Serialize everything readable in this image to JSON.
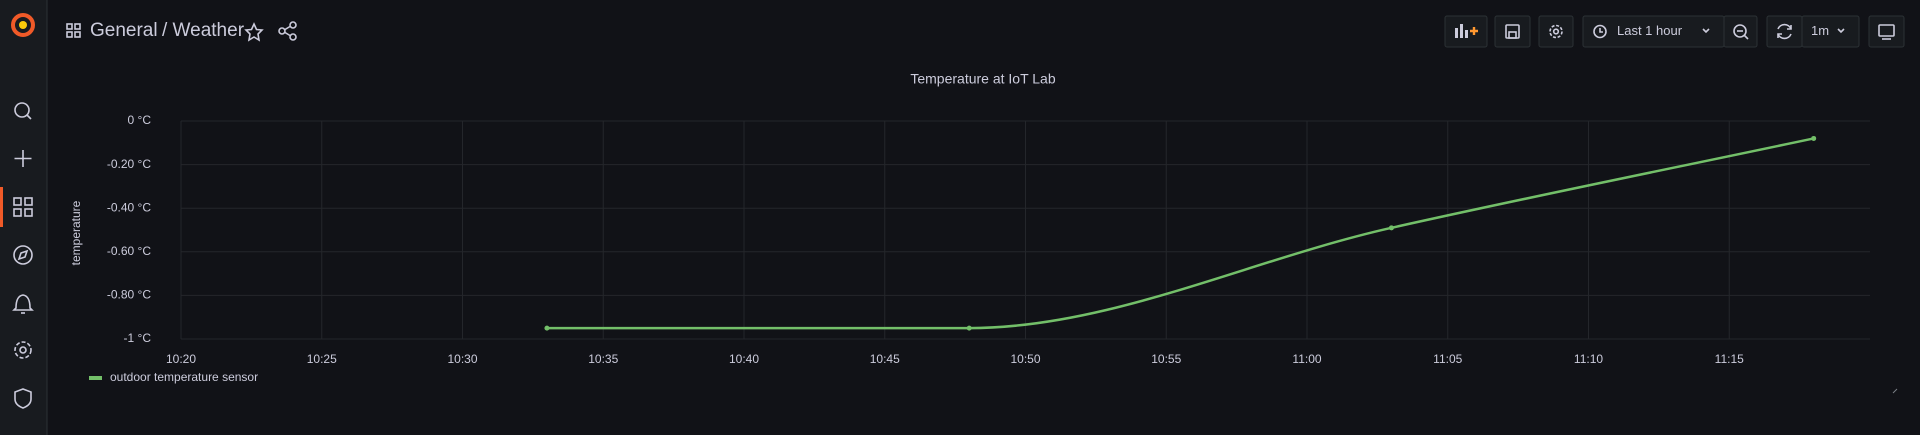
{
  "header": {
    "folder": "General",
    "dashboard": "/ Weather",
    "time_range": "Last 1 hour",
    "refresh": "1m"
  },
  "chart_data": {
    "type": "line",
    "title": "Temperature at IoT Lab",
    "y_label": "temperature",
    "x": [
      "10:33",
      "10:48",
      "11:03",
      "11:18"
    ],
    "series": [
      {
        "name": "outdoor temperature sensor",
        "color": "#73bf69",
        "values": [
          -0.95,
          -0.95,
          -0.49,
          -0.08
        ]
      }
    ],
    "xlim": [
      "10:20",
      "11:20"
    ],
    "xticks": [
      "10:20",
      "10:25",
      "10:30",
      "10:35",
      "10:40",
      "10:45",
      "10:50",
      "10:55",
      "11:00",
      "11:05",
      "11:10",
      "11:15"
    ],
    "ylim": [
      -1,
      0
    ],
    "yticks": [
      {
        "value": 0,
        "label": "0 °C"
      },
      {
        "value": -0.2,
        "label": "-0.20 °C"
      },
      {
        "value": -0.4,
        "label": "-0.40 °C"
      },
      {
        "value": -0.6,
        "label": "-0.60 °C"
      },
      {
        "value": -0.8,
        "label": "-0.80 °C"
      },
      {
        "value": -1,
        "label": "-1 °C"
      }
    ],
    "grid": true,
    "legend": "bottom-left"
  }
}
